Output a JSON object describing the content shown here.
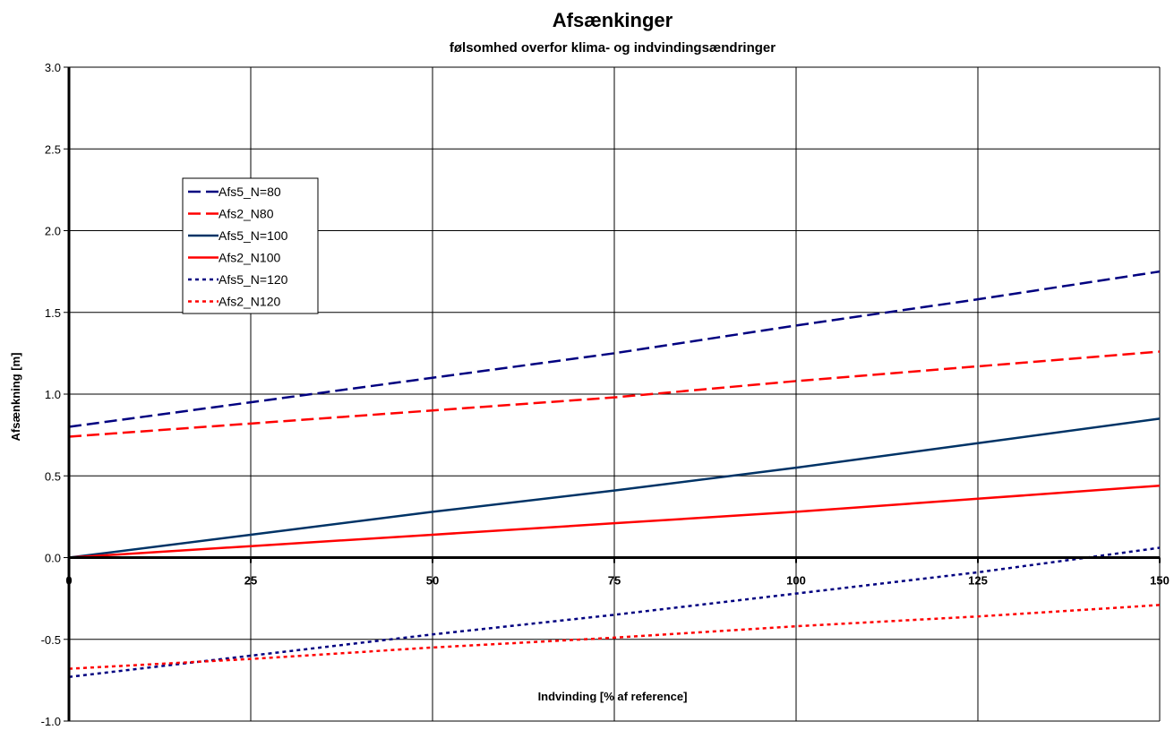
{
  "chart_data": {
    "type": "line",
    "title": "Afsænkinger",
    "subtitle": "følsomhed overfor klima- og indvindingsændringer",
    "xlabel": "Indvinding [% af reference]",
    "ylabel": "Afsænkning [m]",
    "xlim": [
      0,
      150
    ],
    "ylim": [
      -1.0,
      3.0
    ],
    "xticks": [
      0,
      25,
      50,
      75,
      100,
      125,
      150
    ],
    "xtick_labels": [
      "0",
      "25",
      "50",
      "75",
      "100",
      "125",
      "150"
    ],
    "yticks": [
      -1.0,
      -0.5,
      0.0,
      0.5,
      1.0,
      1.5,
      2.0,
      2.5,
      3.0
    ],
    "ytick_labels": [
      "-1.0",
      "-0.5",
      "0.0",
      "0.5",
      "1.0",
      "1.5",
      "2.0",
      "2.5",
      "3.0"
    ],
    "grid": true,
    "legend_position": "upper-left",
    "x": [
      0,
      25,
      50,
      75,
      100,
      125,
      150
    ],
    "series": [
      {
        "name": "Afs5_N=80",
        "color": "#000080",
        "style": "dashed",
        "values": [
          0.8,
          0.95,
          1.1,
          1.25,
          1.42,
          1.58,
          1.75
        ]
      },
      {
        "name": "Afs2_N80",
        "color": "#ff0000",
        "style": "dashed",
        "values": [
          0.74,
          0.82,
          0.9,
          0.98,
          1.08,
          1.17,
          1.26
        ]
      },
      {
        "name": "Afs5_N=100",
        "color": "#003366",
        "style": "solid",
        "values": [
          0.0,
          0.14,
          0.28,
          0.41,
          0.55,
          0.7,
          0.85
        ]
      },
      {
        "name": "Afs2_N100",
        "color": "#ff0000",
        "style": "solid",
        "values": [
          0.0,
          0.07,
          0.14,
          0.21,
          0.28,
          0.36,
          0.44
        ]
      },
      {
        "name": "Afs5_N=120",
        "color": "#000080",
        "style": "dotted",
        "values": [
          -0.73,
          -0.6,
          -0.47,
          -0.35,
          -0.22,
          -0.09,
          0.06
        ]
      },
      {
        "name": "Afs2_N120",
        "color": "#ff0000",
        "style": "dotted",
        "values": [
          -0.68,
          -0.62,
          -0.55,
          -0.49,
          -0.42,
          -0.36,
          -0.29
        ]
      }
    ]
  }
}
